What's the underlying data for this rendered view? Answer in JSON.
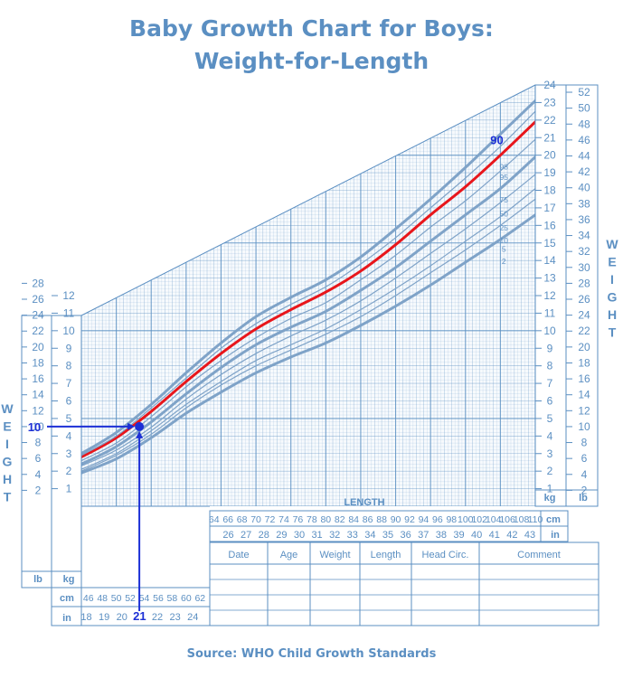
{
  "title_line1": "Baby Growth Chart for Boys:",
  "title_line2": "Weight-for-Length",
  "source": "Source: WHO Child Growth Standards",
  "colors": {
    "grid": "#5b8fc2",
    "curve": "#7fa3c8",
    "highlight": "#e8161b",
    "marker": "#1c2fd6",
    "text": "#5b8fc2"
  },
  "chart_data": {
    "type": "line",
    "xlabel": "LENGTH",
    "ylabel": "WEIGHT",
    "x_unit": "cm",
    "x_unit_alt": "in",
    "y_unit": "kg",
    "y_unit_alt": "lb",
    "xlim": [
      45,
      110
    ],
    "ylim": [
      0,
      24
    ],
    "x_ticks_cm": [
      46,
      48,
      50,
      52,
      54,
      56,
      58,
      60,
      62,
      64,
      66,
      68,
      70,
      72,
      74,
      76,
      78,
      80,
      82,
      84,
      86,
      88,
      90,
      92,
      94,
      96,
      98,
      100,
      102,
      104,
      106,
      108,
      110
    ],
    "x_ticks_in": [
      18,
      19,
      20,
      21,
      22,
      23,
      24,
      25,
      26,
      27,
      28,
      29,
      30,
      31,
      32,
      33,
      34,
      35,
      36,
      37,
      38,
      39,
      40,
      41,
      42,
      43
    ],
    "y_ticks_kg": [
      1,
      2,
      3,
      4,
      5,
      6,
      7,
      8,
      9,
      10,
      11,
      12,
      13,
      14,
      15,
      16,
      17,
      18,
      19,
      20,
      21,
      22,
      23,
      24
    ],
    "y_ticks_lb": [
      2,
      4,
      6,
      8,
      10,
      12,
      14,
      16,
      18,
      20,
      22,
      24,
      26,
      28,
      30,
      32,
      34,
      36,
      38,
      40,
      42,
      44,
      46,
      48,
      50,
      52
    ],
    "x": [
      45,
      50,
      55,
      60,
      65,
      70,
      75,
      80,
      85,
      90,
      95,
      100,
      105,
      110
    ],
    "series": [
      {
        "name": "2",
        "values": [
          1.9,
          2.7,
          3.9,
          5.3,
          6.5,
          7.6,
          8.5,
          9.3,
          10.3,
          11.4,
          12.6,
          13.9,
          15.2,
          16.6
        ]
      },
      {
        "name": "5",
        "values": [
          2.0,
          2.9,
          4.1,
          5.6,
          6.9,
          8.0,
          8.9,
          9.8,
          10.8,
          12.0,
          13.3,
          14.6,
          16.0,
          17.5
        ]
      },
      {
        "name": "10",
        "values": [
          2.1,
          3.0,
          4.3,
          5.8,
          7.1,
          8.3,
          9.2,
          10.1,
          11.2,
          12.4,
          13.7,
          15.1,
          16.5,
          18.1
        ]
      },
      {
        "name": "25",
        "values": [
          2.3,
          3.2,
          4.5,
          6.1,
          7.5,
          8.7,
          9.7,
          10.6,
          11.7,
          13.0,
          14.4,
          15.8,
          17.3,
          18.9
        ]
      },
      {
        "name": "50",
        "values": [
          2.4,
          3.4,
          4.8,
          6.4,
          7.9,
          9.2,
          10.2,
          11.1,
          12.3,
          13.6,
          15.1,
          16.6,
          18.1,
          19.9
        ]
      },
      {
        "name": "75",
        "values": [
          2.6,
          3.6,
          5.1,
          6.8,
          8.3,
          9.6,
          10.7,
          11.6,
          12.9,
          14.3,
          15.9,
          17.4,
          19.1,
          20.9
        ]
      },
      {
        "name": "90",
        "values": [
          2.8,
          3.9,
          5.4,
          7.1,
          8.7,
          10.1,
          11.2,
          12.2,
          13.4,
          14.9,
          16.6,
          18.2,
          20.0,
          21.9
        ],
        "highlight": true
      },
      {
        "name": "95",
        "values": [
          2.9,
          4.0,
          5.6,
          7.3,
          9.0,
          10.4,
          11.5,
          12.5,
          13.8,
          15.3,
          17.0,
          18.7,
          20.5,
          22.5
        ]
      },
      {
        "name": "98",
        "values": [
          3.0,
          4.2,
          5.8,
          7.6,
          9.3,
          10.8,
          11.9,
          12.9,
          14.2,
          15.8,
          17.5,
          19.3,
          21.2,
          23.1
        ]
      }
    ],
    "highlight_label": "90",
    "marker": {
      "length_in": "21",
      "weight_lb": "10",
      "length_cm": 53.3,
      "weight_kg": 4.54
    }
  },
  "record_table": {
    "headers": [
      "Date",
      "Age",
      "Weight",
      "Length",
      "Head Circ.",
      "Comment"
    ],
    "rows": 4
  }
}
